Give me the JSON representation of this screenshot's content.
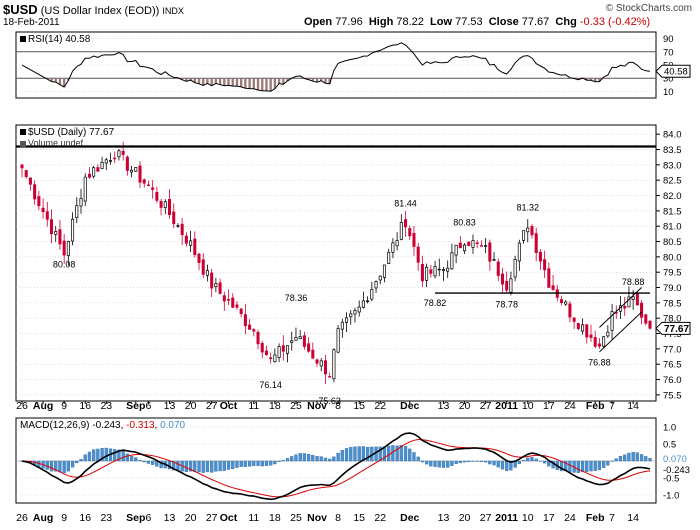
{
  "header": {
    "symbol": "$USD",
    "name": "(US Dollar Index (EOD))",
    "exchange": "INDX",
    "date": "18-Feb-2011",
    "watermark": "© StockCharts.com",
    "open_label": "Open",
    "open": "77.96",
    "high_label": "High",
    "high": "78.22",
    "low_label": "Low",
    "low": "77.53",
    "close_label": "Close",
    "close": "77.67",
    "chg_label": "Chg",
    "chg": "-0.33 (-0.42%)",
    "chg_color": "#d00000"
  },
  "rsi_panel": {
    "label": "RSI(14) 40.58",
    "ticks": [
      "90",
      "70",
      "50",
      "30",
      "10"
    ],
    "current": "40.58"
  },
  "price_panel": {
    "label": "$USD (Daily) 77.67",
    "volume_label": "Volume undef",
    "current": "77.67",
    "ticks": [
      "84.0",
      "83.5",
      "83.0",
      "82.5",
      "82.0",
      "81.5",
      "81.0",
      "80.5",
      "80.0",
      "79.5",
      "79.0",
      "78.5",
      "78.0",
      "77.5",
      "77.0",
      "76.5",
      "76.0",
      "75.5"
    ]
  },
  "macd_panel": {
    "label": "MACD(12,26,9)",
    "macd": "-0.243",
    "signal": "-0.313",
    "hist": "0.070",
    "ticks": [
      "1.0",
      "0.5",
      "0.070",
      "-0.243",
      "-0.5",
      "-1.0"
    ]
  },
  "x_axis": [
    "26",
    "Aug",
    "9",
    "16",
    "23",
    "Sep",
    "6",
    "13",
    "20",
    "27",
    "Oct",
    "11",
    "18",
    "25",
    "Nov",
    "8",
    "15",
    "22",
    "Dec",
    "13",
    "20",
    "27",
    "2011",
    "10",
    "17",
    "24",
    "Feb",
    "7",
    "14"
  ],
  "colors": {
    "up_candle": "#000000",
    "down_candle": "#cc0033",
    "rsi_fill": "#9e7b7b",
    "macd_line": "#000000",
    "signal_line": "#dd0000",
    "histogram": "#4a90d0",
    "grid": "#bbbbbb"
  },
  "chart_data": {
    "type": "candlestick",
    "title": "$USD (US Dollar Index (EOD))",
    "ylim": [
      75.3,
      84.3
    ],
    "annotations": [
      {
        "label": "80.08",
        "value": 80.08,
        "date": "2010-08-09"
      },
      {
        "label": "78.36",
        "value": 78.36,
        "date": "2010-10-25"
      },
      {
        "label": "76.14",
        "value": 76.14,
        "date": "2010-10-15"
      },
      {
        "label": "75.63",
        "value": 75.63,
        "date": "2010-11-04"
      },
      {
        "label": "81.44",
        "value": 81.44,
        "date": "2010-11-30"
      },
      {
        "label": "80.83",
        "value": 80.83,
        "date": "2010-12-20"
      },
      {
        "label": "78.82",
        "value": 78.82,
        "date": "2010-12-09"
      },
      {
        "label": "78.78",
        "value": 78.78,
        "date": "2011-01-03"
      },
      {
        "label": "81.32",
        "value": 81.32,
        "date": "2011-01-10"
      },
      {
        "label": "78.88",
        "value": 78.88,
        "date": "2011-02-14"
      },
      {
        "label": "76.88",
        "value": 76.88,
        "date": "2011-02-02"
      }
    ],
    "horizontal_lines": [
      {
        "value": 83.6,
        "from": "2010-07-26",
        "to": "2011-02-18"
      },
      {
        "value": 78.82,
        "from": "2010-12-09",
        "to": "2011-02-18"
      }
    ],
    "close_anchors": [
      {
        "date": "2010-07-26",
        "close": 82.9
      },
      {
        "date": "2010-08-09",
        "close": 80.1
      },
      {
        "date": "2010-08-16",
        "close": 82.6
      },
      {
        "date": "2010-08-25",
        "close": 83.4
      },
      {
        "date": "2010-09-06",
        "close": 82.3
      },
      {
        "date": "2010-09-13",
        "close": 81.4
      },
      {
        "date": "2010-09-20",
        "close": 80.4
      },
      {
        "date": "2010-09-27",
        "close": 79.1
      },
      {
        "date": "2010-10-04",
        "close": 78.4
      },
      {
        "date": "2010-10-11",
        "close": 77.6
      },
      {
        "date": "2010-10-15",
        "close": 76.6
      },
      {
        "date": "2010-10-25",
        "close": 77.4
      },
      {
        "date": "2010-11-04",
        "close": 76.2
      },
      {
        "date": "2010-11-08",
        "close": 77.5
      },
      {
        "date": "2010-11-15",
        "close": 78.3
      },
      {
        "date": "2010-11-22",
        "close": 79.5
      },
      {
        "date": "2010-11-30",
        "close": 81.2
      },
      {
        "date": "2010-12-06",
        "close": 79.4
      },
      {
        "date": "2010-12-13",
        "close": 79.6
      },
      {
        "date": "2010-12-20",
        "close": 80.6
      },
      {
        "date": "2010-12-27",
        "close": 80.2
      },
      {
        "date": "2011-01-03",
        "close": 79.1
      },
      {
        "date": "2011-01-10",
        "close": 81.1
      },
      {
        "date": "2011-01-17",
        "close": 79.2
      },
      {
        "date": "2011-01-24",
        "close": 78.2
      },
      {
        "date": "2011-02-02",
        "close": 77.1
      },
      {
        "date": "2011-02-07",
        "close": 78.1
      },
      {
        "date": "2011-02-14",
        "close": 78.6
      },
      {
        "date": "2011-02-18",
        "close": 77.67
      }
    ]
  }
}
